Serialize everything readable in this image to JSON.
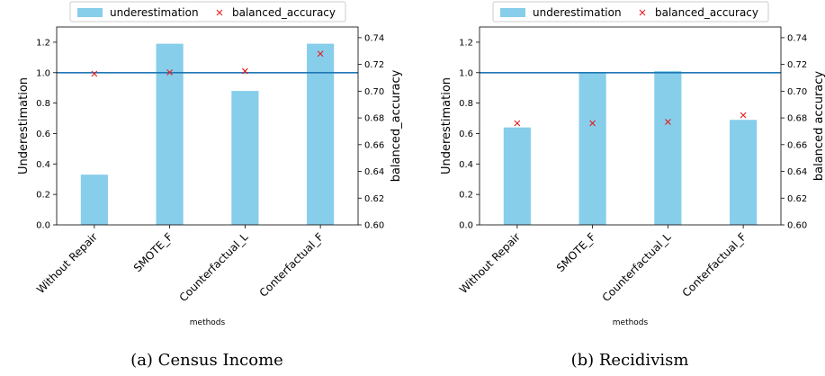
{
  "chart_data": [
    {
      "type": "bar",
      "caption": "(a) Census Income",
      "categories": [
        "Without Repair",
        "SMOTE_F",
        "Counterfactual_L",
        "Conterfactual_F"
      ],
      "series": [
        {
          "name": "underestimation",
          "axis": "left",
          "kind": "bar",
          "color": "#87CEEB",
          "values": [
            0.33,
            1.19,
            0.88,
            1.19
          ]
        },
        {
          "name": "balanced_accuracy",
          "axis": "right",
          "kind": "marker",
          "color": "#e41a1c",
          "values": [
            0.713,
            0.714,
            0.715,
            0.728
          ]
        }
      ],
      "reference_line": {
        "axis": "left",
        "value": 1.0,
        "color": "#1f77b4"
      },
      "xlabel": "methods",
      "ylabel": "Underestimation",
      "y2label": "balanced_accuracy",
      "ylim": [
        0,
        1.3
      ],
      "y2lim": [
        0.6,
        0.748
      ],
      "yticks": [
        "0.0",
        "0.2",
        "0.4",
        "0.6",
        "0.8",
        "1.0",
        "1.2"
      ],
      "y2ticks": [
        "0.60",
        "0.62",
        "0.64",
        "0.66",
        "0.68",
        "0.70",
        "0.72",
        "0.74"
      ],
      "legend": "top-center"
    },
    {
      "type": "bar",
      "caption": "(b) Recidivism",
      "categories": [
        "Without Repair",
        "SMOTE_F",
        "Counterfactual_L",
        "Conterfactual_F"
      ],
      "series": [
        {
          "name": "underestimation",
          "axis": "left",
          "kind": "bar",
          "color": "#87CEEB",
          "values": [
            0.64,
            1.0,
            1.01,
            0.69
          ]
        },
        {
          "name": "balanced_accuracy",
          "axis": "right",
          "kind": "marker",
          "color": "#e41a1c",
          "values": [
            0.676,
            0.676,
            0.677,
            0.682
          ]
        }
      ],
      "reference_line": {
        "axis": "left",
        "value": 1.0,
        "color": "#1f77b4"
      },
      "xlabel": "methods",
      "ylabel": "Underestimation",
      "y2label": "balanced accuracy",
      "ylim": [
        0,
        1.3
      ],
      "y2lim": [
        0.6,
        0.748
      ],
      "yticks": [
        "0.0",
        "0.2",
        "0.4",
        "0.6",
        "0.8",
        "1.0",
        "1.2"
      ],
      "y2ticks": [
        "0.60",
        "0.62",
        "0.64",
        "0.66",
        "0.68",
        "0.70",
        "0.72",
        "0.74"
      ],
      "legend": "top-center"
    }
  ]
}
